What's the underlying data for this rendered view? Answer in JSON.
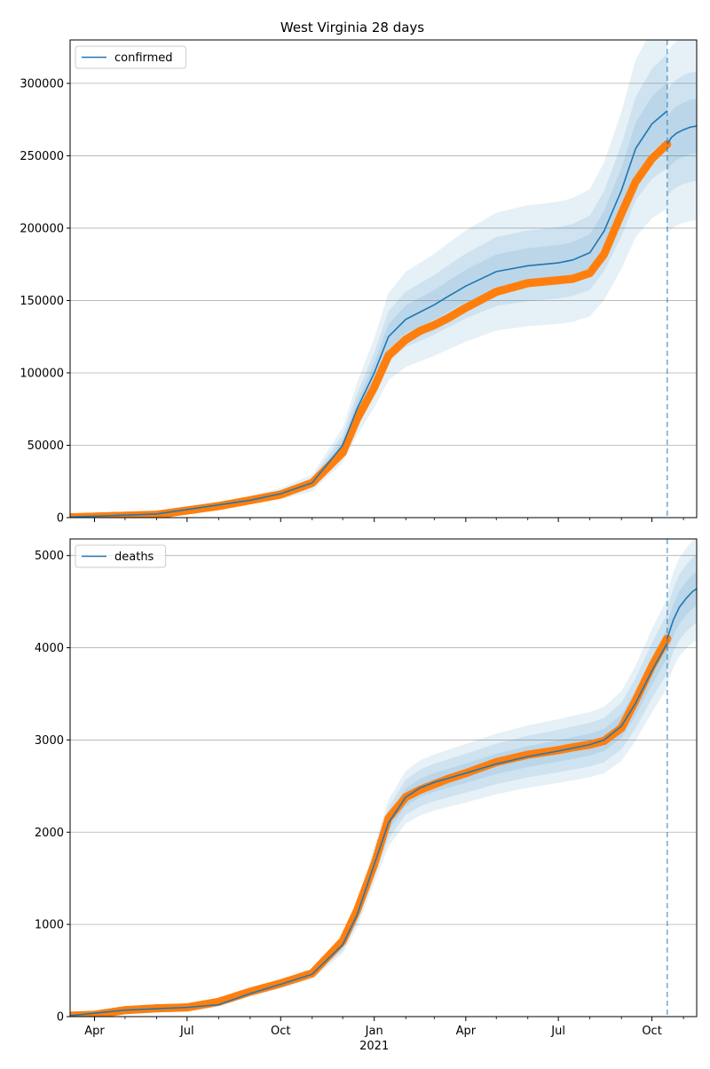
{
  "title": "West Virginia 28 days",
  "colors": {
    "model": "#1f77b4",
    "observed": "#ff7f0e",
    "band": "#1f77b4",
    "grid": "#b0b0b0",
    "vline": "#1f77b4"
  },
  "chart_data": [
    {
      "type": "line",
      "name": "confirmed",
      "legend": "confirmed",
      "legend_loc": "upper left",
      "grid_y": true,
      "ylim": [
        0,
        330000
      ],
      "yticks": [
        0,
        50000,
        100000,
        150000,
        200000,
        250000,
        300000
      ],
      "ytick_labels": [
        "0",
        "50000",
        "100000",
        "150000",
        "200000",
        "250000",
        "300000"
      ],
      "xlim": [
        "2020-03-08",
        "2021-11-14"
      ],
      "vline_date": "2021-10-16",
      "model": {
        "x": [
          "2020-03-08",
          "2020-06-01",
          "2020-09-01",
          "2020-10-01",
          "2020-11-01",
          "2020-12-01",
          "2020-12-15",
          "2021-01-01",
          "2021-01-15",
          "2021-02-01",
          "2021-02-15",
          "2021-03-01",
          "2021-03-15",
          "2021-04-01",
          "2021-05-01",
          "2021-06-01",
          "2021-07-01",
          "2021-07-15",
          "2021-08-01",
          "2021-08-15",
          "2021-09-01",
          "2021-09-15",
          "2021-10-01",
          "2021-10-16"
        ],
        "y": [
          400,
          2500,
          12000,
          16500,
          24000,
          50000,
          75000,
          100000,
          125000,
          137000,
          142000,
          147000,
          153000,
          160000,
          170000,
          174000,
          176000,
          178000,
          183000,
          198000,
          226000,
          255000,
          272000,
          281000
        ]
      },
      "forecast": {
        "x": [
          "2021-10-16",
          "2021-10-20",
          "2021-10-25",
          "2021-11-01",
          "2021-11-08",
          "2021-11-14"
        ],
        "y": [
          258000,
          262500,
          265500,
          268000,
          269800,
          270500
        ]
      },
      "observed": {
        "x": [
          "2020-03-08",
          "2020-06-01",
          "2020-08-01",
          "2020-09-01",
          "2020-10-01",
          "2020-11-01",
          "2020-12-01",
          "2020-12-15",
          "2021-01-01",
          "2021-01-15",
          "2021-02-01",
          "2021-02-15",
          "2021-03-01",
          "2021-03-15",
          "2021-04-01",
          "2021-05-01",
          "2021-06-01",
          "2021-07-01",
          "2021-07-15",
          "2021-08-01",
          "2021-08-15",
          "2021-09-01",
          "2021-09-15",
          "2021-10-01",
          "2021-10-16"
        ],
        "y": [
          200,
          2000,
          8000,
          12000,
          16000,
          24000,
          45000,
          68000,
          90000,
          112000,
          123000,
          129000,
          133000,
          138000,
          145000,
          156000,
          162000,
          164000,
          165000,
          169000,
          182000,
          210000,
          232000,
          248000,
          258000
        ]
      },
      "band_fractions": [
        0.07,
        0.14,
        0.24
      ]
    },
    {
      "type": "line",
      "name": "deaths",
      "legend": "deaths",
      "legend_loc": "upper left",
      "grid_y": true,
      "ylim": [
        0,
        5180
      ],
      "yticks": [
        0,
        1000,
        2000,
        3000,
        4000,
        5000
      ],
      "ytick_labels": [
        "0",
        "1000",
        "2000",
        "3000",
        "4000",
        "5000"
      ],
      "xlim": [
        "2020-03-08",
        "2021-11-14"
      ],
      "xticks": [
        "2020-04-01",
        "2020-07-01",
        "2020-10-01",
        "2021-01-01",
        "2021-04-01",
        "2021-07-01",
        "2021-10-01"
      ],
      "xtick_labels": [
        "Apr",
        "Jul",
        "Oct",
        "Jan",
        "Apr",
        "Jul",
        "Oct"
      ],
      "xtick_sublabel": {
        "at": "2021-01-01",
        "text": "2021"
      },
      "vline_date": "2021-10-16",
      "model": {
        "x": [
          "2020-03-08",
          "2020-05-01",
          "2020-07-01",
          "2020-08-01",
          "2020-09-01",
          "2020-10-01",
          "2020-11-01",
          "2020-12-01",
          "2020-12-15",
          "2021-01-01",
          "2021-01-15",
          "2021-02-01",
          "2021-02-15",
          "2021-03-01",
          "2021-04-01",
          "2021-05-01",
          "2021-06-01",
          "2021-07-01",
          "2021-08-01",
          "2021-08-15",
          "2021-09-01",
          "2021-09-15",
          "2021-10-01",
          "2021-10-16"
        ],
        "y": [
          10,
          70,
          100,
          130,
          250,
          350,
          460,
          780,
          1100,
          1650,
          2100,
          2380,
          2480,
          2540,
          2640,
          2740,
          2820,
          2880,
          2950,
          3000,
          3150,
          3400,
          3750,
          4050
        ]
      },
      "forecast": {
        "x": [
          "2021-10-16",
          "2021-10-22",
          "2021-10-28",
          "2021-11-04",
          "2021-11-10",
          "2021-11-14"
        ],
        "y": [
          4100,
          4300,
          4440,
          4540,
          4610,
          4640
        ]
      },
      "observed": {
        "x": [
          "2020-03-08",
          "2020-04-01",
          "2020-05-01",
          "2020-06-01",
          "2020-07-01",
          "2020-08-01",
          "2020-09-01",
          "2020-10-01",
          "2020-11-01",
          "2020-12-01",
          "2020-12-15",
          "2021-01-01",
          "2021-01-15",
          "2021-02-01",
          "2021-02-15",
          "2021-03-01",
          "2021-03-15",
          "2021-04-01",
          "2021-05-01",
          "2021-06-01",
          "2021-07-01",
          "2021-07-15",
          "2021-08-01",
          "2021-08-15",
          "2021-09-01",
          "2021-09-15",
          "2021-10-01",
          "2021-10-16"
        ],
        "y": [
          10,
          20,
          70,
          90,
          100,
          160,
          270,
          360,
          470,
          820,
          1150,
          1650,
          2150,
          2380,
          2460,
          2520,
          2580,
          2640,
          2760,
          2840,
          2890,
          2920,
          2950,
          2990,
          3130,
          3430,
          3800,
          4100
        ]
      },
      "band_fractions": [
        0.04,
        0.08,
        0.12
      ]
    }
  ]
}
